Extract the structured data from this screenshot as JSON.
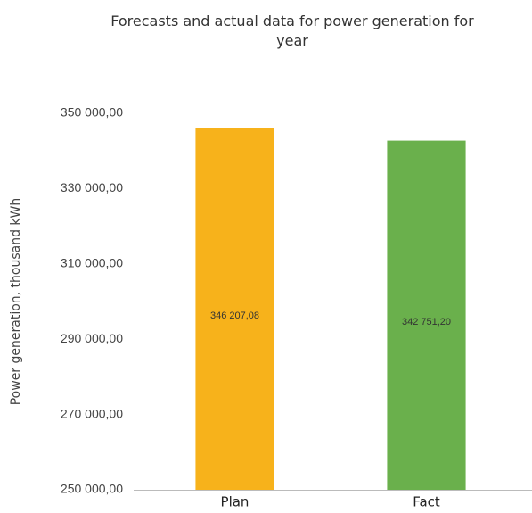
{
  "chart_data": {
    "type": "bar",
    "title": "Forecasts and actual data for power generation for year",
    "y_label": "Power generation, thousand kWh",
    "categories": [
      "Plan",
      "Fact"
    ],
    "values": [
      346207.08,
      342751.2
    ],
    "value_labels": [
      "346 207,08",
      "342 751,20"
    ],
    "colors": [
      "#f7b21b",
      "#6ab04c"
    ],
    "ylim": [
      250000,
      350000
    ],
    "yticks": [
      {
        "value": 250000,
        "label": "250 000,00"
      },
      {
        "value": 270000,
        "label": "270 000,00"
      },
      {
        "value": 290000,
        "label": "290 000,00"
      },
      {
        "value": 310000,
        "label": "310 000,00"
      },
      {
        "value": 330000,
        "label": "330 000,00"
      },
      {
        "value": 350000,
        "label": "350 000,00"
      }
    ],
    "grid": false
  }
}
